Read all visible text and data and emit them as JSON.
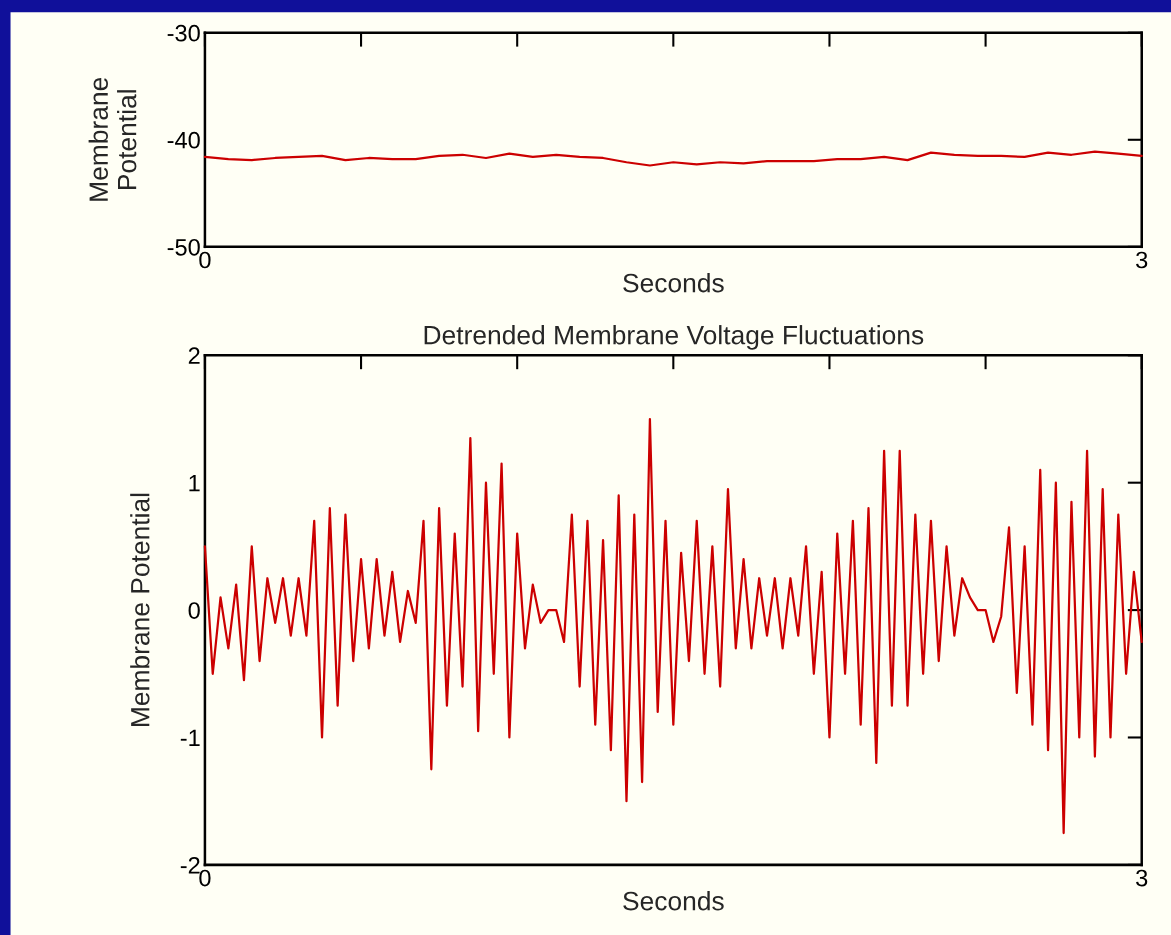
{
  "chart_data": [
    {
      "type": "line",
      "xlabel": "Seconds",
      "ylabel": "Membrane\nPotential",
      "xlim": [
        0,
        3
      ],
      "ylim": [
        -50,
        -30
      ],
      "xticks": [
        0,
        {
          "value": 0.5,
          "label": null
        },
        {
          "value": 1,
          "label": null
        },
        {
          "value": 1.5,
          "label": null
        },
        {
          "value": 2,
          "label": null
        },
        {
          "value": 2.5,
          "label": null
        },
        3
      ],
      "yticks": [
        -50,
        -40,
        -30
      ],
      "series": [
        {
          "color": "#cc0000",
          "x": [
            0,
            0.075,
            0.15,
            0.225,
            0.3,
            0.375,
            0.45,
            0.525,
            0.6,
            0.675,
            0.75,
            0.825,
            0.9,
            0.975,
            1.05,
            1.125,
            1.2,
            1.275,
            1.35,
            1.425,
            1.5,
            1.575,
            1.65,
            1.725,
            1.8,
            1.875,
            1.95,
            2.025,
            2.1,
            2.175,
            2.25,
            2.325,
            2.4,
            2.475,
            2.55,
            2.625,
            2.7,
            2.775,
            2.85,
            2.925,
            3.0
          ],
          "values": [
            -41.6,
            -41.8,
            -41.9,
            -41.7,
            -41.6,
            -41.5,
            -41.9,
            -41.7,
            -41.8,
            -41.8,
            -41.5,
            -41.4,
            -41.7,
            -41.3,
            -41.6,
            -41.4,
            -41.6,
            -41.7,
            -42.1,
            -42.4,
            -42.1,
            -42.3,
            -42.1,
            -42.2,
            -42.0,
            -42.0,
            -42.0,
            -41.8,
            -41.8,
            -41.6,
            -41.9,
            -41.2,
            -41.4,
            -41.5,
            -41.5,
            -41.6,
            -41.2,
            -41.4,
            -41.1,
            -41.3,
            -41.5
          ]
        }
      ]
    },
    {
      "type": "line",
      "title": "Detrended Membrane Voltage Fluctuations",
      "xlabel": "Seconds",
      "ylabel": "Membrane Potential",
      "xlim": [
        0,
        3
      ],
      "ylim": [
        -2,
        2
      ],
      "xticks": [
        0,
        {
          "value": 0.5,
          "label": null
        },
        {
          "value": 1,
          "label": null
        },
        {
          "value": 1.5,
          "label": null
        },
        {
          "value": 2,
          "label": null
        },
        {
          "value": 2.5,
          "label": null
        },
        3
      ],
      "yticks": [
        -2,
        -1,
        0,
        1,
        2
      ],
      "series": [
        {
          "color": "#cc0000",
          "x": [
            0,
            0.025,
            0.05,
            0.075,
            0.1,
            0.125,
            0.15,
            0.175,
            0.2,
            0.225,
            0.25,
            0.275,
            0.3,
            0.325,
            0.35,
            0.375,
            0.4,
            0.425,
            0.45,
            0.475,
            0.5,
            0.525,
            0.55,
            0.575,
            0.6,
            0.625,
            0.65,
            0.675,
            0.7,
            0.725,
            0.75,
            0.775,
            0.8,
            0.825,
            0.85,
            0.875,
            0.9,
            0.925,
            0.95,
            0.975,
            1.0,
            1.025,
            1.05,
            1.075,
            1.1,
            1.125,
            1.15,
            1.175,
            1.2,
            1.225,
            1.25,
            1.275,
            1.3,
            1.325,
            1.35,
            1.375,
            1.4,
            1.425,
            1.45,
            1.475,
            1.5,
            1.525,
            1.55,
            1.575,
            1.6,
            1.625,
            1.65,
            1.675,
            1.7,
            1.725,
            1.75,
            1.775,
            1.8,
            1.825,
            1.85,
            1.875,
            1.9,
            1.925,
            1.95,
            1.975,
            2.0,
            2.025,
            2.05,
            2.075,
            2.1,
            2.125,
            2.15,
            2.175,
            2.2,
            2.225,
            2.25,
            2.275,
            2.3,
            2.325,
            2.35,
            2.375,
            2.4,
            2.425,
            2.45,
            2.475,
            2.5,
            2.525,
            2.55,
            2.575,
            2.6,
            2.625,
            2.65,
            2.675,
            2.7,
            2.725,
            2.75,
            2.775,
            2.8,
            2.825,
            2.85,
            2.875,
            2.9,
            2.925,
            2.95,
            2.975,
            3.0
          ],
          "values": [
            0.5,
            -0.5,
            0.1,
            -0.3,
            0.2,
            -0.55,
            0.5,
            -0.4,
            0.25,
            -0.1,
            0.25,
            -0.2,
            0.25,
            -0.2,
            0.7,
            -1.0,
            0.8,
            -0.75,
            0.75,
            -0.4,
            0.4,
            -0.3,
            0.4,
            -0.2,
            0.3,
            -0.25,
            0.15,
            -0.1,
            0.7,
            -1.25,
            0.8,
            -0.75,
            0.6,
            -0.6,
            1.35,
            -0.95,
            1.0,
            -0.5,
            1.15,
            -1.0,
            0.6,
            -0.3,
            0.2,
            -0.1,
            0.0,
            0.0,
            -0.25,
            0.75,
            -0.6,
            0.7,
            -0.9,
            0.55,
            -1.1,
            0.9,
            -1.5,
            0.75,
            -1.35,
            1.5,
            -0.8,
            0.7,
            -0.9,
            0.45,
            -0.4,
            0.7,
            -0.5,
            0.5,
            -0.6,
            0.95,
            -0.3,
            0.4,
            -0.3,
            0.25,
            -0.2,
            0.25,
            -0.3,
            0.25,
            -0.2,
            0.5,
            -0.5,
            0.3,
            -1.0,
            0.6,
            -0.5,
            0.7,
            -0.9,
            0.8,
            -1.2,
            1.25,
            -0.75,
            1.25,
            -0.75,
            0.75,
            -0.5,
            0.7,
            -0.4,
            0.5,
            -0.2,
            0.25,
            0.1,
            0.0,
            0.0,
            -0.25,
            -0.05,
            0.65,
            -0.65,
            0.5,
            -0.9,
            1.1,
            -1.1,
            1.0,
            -1.75,
            0.85,
            -1.0,
            1.25,
            -1.15,
            0.95,
            -1.0,
            0.75,
            -0.5,
            0.3,
            -0.25
          ]
        }
      ]
    }
  ]
}
